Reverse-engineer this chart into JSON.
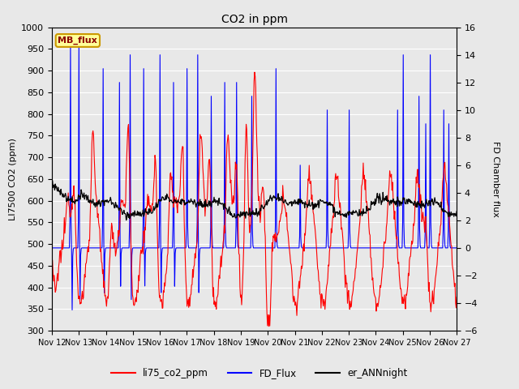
{
  "title": "CO2 in ppm",
  "ylabel_left": "LI7500 CO2 (ppm)",
  "ylabel_right": "FD Chamber flux",
  "ylim_left": [
    300,
    1000
  ],
  "ylim_right": [
    -6,
    16
  ],
  "yticks_left": [
    300,
    350,
    400,
    450,
    500,
    550,
    600,
    650,
    700,
    750,
    800,
    850,
    900,
    950,
    1000
  ],
  "yticks_right": [
    -6,
    -4,
    -2,
    0,
    2,
    4,
    6,
    8,
    10,
    12,
    14,
    16
  ],
  "xtick_labels": [
    "Nov 12",
    "Nov 13",
    "Nov 14",
    "Nov 15",
    "Nov 16",
    "Nov 17",
    "Nov 18",
    "Nov 19",
    "Nov 20",
    "Nov 21",
    "Nov 22",
    "Nov 23",
    "Nov 24",
    "Nov 25",
    "Nov 26",
    "Nov 27"
  ],
  "legend_labels": [
    "li75_co2_ppm",
    "FD_Flux",
    "er_ANNnight"
  ],
  "line_colors": [
    "red",
    "blue",
    "black"
  ],
  "background_color": "#e8e8e8",
  "plot_bg_color": "#e8e8e8",
  "grid_color": "#ffffff",
  "mb_flux_box_color": "#ffff99",
  "mb_flux_box_edge": "#cc9900",
  "figsize": [
    6.4,
    4.8
  ],
  "dpi": 100
}
